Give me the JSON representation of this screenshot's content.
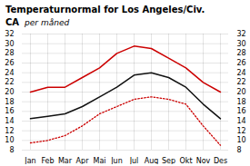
{
  "chart_data": {
    "type": "line",
    "title": "Temperaturnormal for Los Angeles/Civ. CA",
    "subtitle": "per måned",
    "categories": [
      "Jan",
      "Feb",
      "Mar",
      "Apr",
      "Mai",
      "Jun",
      "Jul",
      "Aug",
      "Sep",
      "Okt",
      "Nov",
      "Des"
    ],
    "series": [
      {
        "color": "#cc0000",
        "line_style": "solid",
        "values": [
          20,
          21,
          21,
          23,
          25,
          28,
          29.5,
          29,
          27,
          25,
          22,
          20
        ]
      },
      {
        "color": "#111111",
        "line_style": "solid",
        "values": [
          14.5,
          15,
          15.5,
          17,
          19,
          21,
          23.5,
          24,
          23,
          21,
          17.5,
          14.5
        ]
      },
      {
        "color": "#cc0000",
        "line_style": "dotted",
        "values": [
          9.5,
          10,
          11,
          13,
          15.5,
          17,
          18.5,
          19,
          18.5,
          17.5,
          13,
          9
        ]
      }
    ],
    "ylim": [
      8,
      32
    ],
    "yticks": [
      8,
      10,
      12,
      14,
      16,
      18,
      20,
      22,
      24,
      26,
      28,
      30,
      32
    ],
    "y2lim": [
      8,
      32
    ],
    "y2ticks": [
      8,
      10,
      12,
      14,
      16,
      18,
      20,
      22,
      24,
      26,
      28,
      30,
      32
    ],
    "grid": true
  }
}
